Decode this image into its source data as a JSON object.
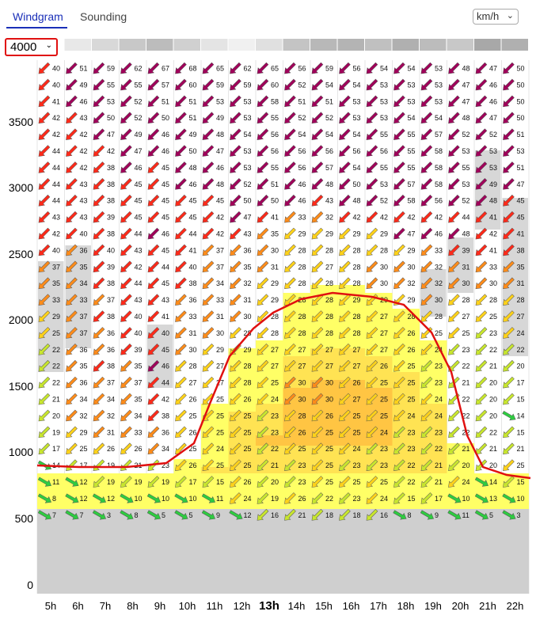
{
  "tabs": [
    {
      "label": "Windgram",
      "active": true
    },
    {
      "label": "Sounding",
      "active": false
    }
  ],
  "unit_select": {
    "value": "km/h"
  },
  "altitude_select": {
    "value": "4000"
  },
  "y_axis_labels": [
    "3500",
    "3000",
    "2500",
    "2000",
    "1500",
    "1000",
    "500",
    "0"
  ],
  "hours": [
    "5h",
    "6h",
    "7h",
    "8h",
    "9h",
    "10h",
    "11h",
    "12h",
    "13h",
    "14h",
    "15h",
    "16h",
    "17h",
    "18h",
    "19h",
    "20h",
    "21h",
    "22h"
  ],
  "current_hour": "13h",
  "colors": {
    "accent": "#1a2fb8",
    "highlight": "#e01010",
    "ground": "#cfcfcf",
    "thermal_top_line": "#e01010"
  },
  "wind_speeds": [
    [
      40,
      51,
      59,
      62,
      67,
      68,
      65,
      62,
      65,
      56,
      59,
      56,
      54,
      54,
      53,
      48,
      47,
      50
    ],
    [
      40,
      49,
      55,
      55,
      57,
      60,
      59,
      59,
      60,
      52,
      54,
      54,
      53,
      53,
      53,
      47,
      46,
      50
    ],
    [
      41,
      46,
      53,
      52,
      51,
      51,
      53,
      53,
      58,
      51,
      51,
      53,
      53,
      53,
      53,
      47,
      46,
      50
    ],
    [
      42,
      43,
      50,
      52,
      50,
      51,
      49,
      53,
      55,
      52,
      52,
      53,
      53,
      54,
      54,
      48,
      47,
      50
    ],
    [
      42,
      42,
      47,
      49,
      46,
      49,
      48,
      54,
      56,
      54,
      54,
      54,
      55,
      55,
      57,
      52,
      52,
      51
    ],
    [
      44,
      42,
      42,
      47,
      46,
      50,
      47,
      53,
      56,
      56,
      56,
      56,
      56,
      55,
      58,
      53,
      53,
      53
    ],
    [
      44,
      42,
      38,
      46,
      45,
      48,
      46,
      53,
      55,
      56,
      57,
      54,
      55,
      55,
      58,
      55,
      53,
      51
    ],
    [
      44,
      43,
      38,
      45,
      45,
      46,
      48,
      52,
      51,
      46,
      48,
      50,
      53,
      57,
      58,
      53,
      49,
      47
    ],
    [
      44,
      43,
      38,
      45,
      45,
      45,
      45,
      50,
      50,
      46,
      43,
      48,
      52,
      58,
      56,
      52,
      48,
      45
    ],
    [
      43,
      43,
      39,
      45,
      45,
      45,
      42,
      47,
      41,
      33,
      32,
      42,
      42,
      42,
      42,
      44,
      41,
      45
    ],
    [
      42,
      40,
      38,
      44,
      46,
      44,
      42,
      43,
      35,
      29,
      29,
      29,
      29,
      47,
      46,
      48,
      42,
      41
    ],
    [
      40,
      36,
      40,
      43,
      45,
      41,
      37,
      36,
      30,
      28,
      28,
      28,
      28,
      29,
      33,
      39,
      41,
      38
    ],
    [
      37,
      35,
      39,
      42,
      44,
      40,
      37,
      35,
      31,
      28,
      27,
      28,
      30,
      30,
      32,
      31,
      33,
      35
    ],
    [
      35,
      34,
      38,
      44,
      45,
      38,
      34,
      32,
      29,
      28,
      28,
      28,
      30,
      32,
      32,
      30,
      30,
      31
    ],
    [
      33,
      33,
      37,
      43,
      43,
      36,
      33,
      31,
      29,
      28,
      28,
      29,
      29,
      29,
      30,
      28,
      28,
      28
    ],
    [
      29,
      37,
      38,
      40,
      41,
      33,
      31,
      30,
      28,
      28,
      28,
      28,
      27,
      28,
      28,
      27,
      25,
      27
    ],
    [
      25,
      37,
      36,
      40,
      40,
      31,
      30,
      28,
      28,
      28,
      28,
      28,
      27,
      26,
      25,
      25,
      23,
      24
    ],
    [
      22,
      36,
      36,
      39,
      45,
      30,
      29,
      29,
      27,
      27,
      27,
      27,
      27,
      26,
      24,
      23,
      22,
      22
    ],
    [
      22,
      35,
      38,
      35,
      46,
      28,
      27,
      28,
      27,
      27,
      27,
      27,
      26,
      25,
      23,
      22,
      21,
      20
    ],
    [
      22,
      36,
      37,
      37,
      44,
      27,
      27,
      28,
      25,
      30,
      30,
      26,
      25,
      25,
      23,
      21,
      20,
      17
    ],
    [
      21,
      34,
      34,
      35,
      42,
      26,
      25,
      26,
      24,
      30,
      30,
      27,
      25,
      25,
      24,
      22,
      20,
      15
    ],
    [
      20,
      32,
      32,
      34,
      38,
      25,
      25,
      25,
      23,
      28,
      26,
      25,
      25,
      24,
      24,
      22,
      20,
      14
    ],
    [
      19,
      29,
      31,
      33,
      36,
      26,
      25,
      25,
      23,
      26,
      25,
      25,
      24,
      23,
      23,
      22,
      22,
      15
    ],
    [
      17,
      25,
      26,
      26,
      34,
      25,
      24,
      25,
      22,
      25,
      25,
      24,
      23,
      23,
      22,
      21,
      21,
      21
    ],
    [
      14,
      17,
      19,
      21,
      23,
      26,
      25,
      25,
      21,
      23,
      25,
      23,
      23,
      22,
      21,
      20,
      20,
      25
    ],
    [
      11,
      12,
      19,
      19,
      19,
      17,
      15,
      26,
      20,
      23,
      25,
      25,
      25,
      22,
      21,
      24,
      14,
      15
    ],
    [
      8,
      12,
      12,
      10,
      10,
      10,
      11,
      24,
      19,
      26,
      22,
      23,
      24,
      15,
      17,
      10,
      13,
      10
    ],
    [
      7,
      7,
      3,
      8,
      5,
      5,
      9,
      12,
      16,
      21,
      18,
      18,
      16,
      8,
      9,
      11,
      5,
      3
    ]
  ]
}
